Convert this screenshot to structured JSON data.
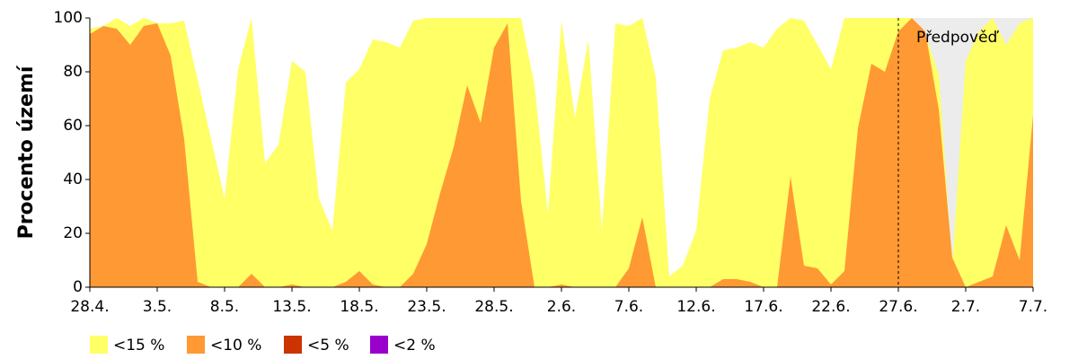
{
  "chart_data": {
    "type": "area",
    "ylabel": "Procento území",
    "annotation": "Předpověď",
    "forecast_from": "27.6.",
    "categories": [
      "28.4.",
      null,
      null,
      null,
      null,
      "3.5.",
      null,
      null,
      null,
      null,
      "8.5.",
      null,
      null,
      null,
      null,
      "13.5.",
      null,
      null,
      null,
      null,
      "18.5.",
      null,
      null,
      null,
      null,
      "23.5.",
      null,
      null,
      null,
      null,
      "28.5.",
      null,
      null,
      null,
      null,
      "2.6.",
      null,
      null,
      null,
      null,
      "7.6.",
      null,
      null,
      null,
      null,
      "12.6.",
      null,
      null,
      null,
      null,
      "17.6.",
      null,
      null,
      null,
      null,
      "22.6.",
      null,
      null,
      null,
      null,
      "27.6.",
      null,
      null,
      null,
      null,
      "2.7.",
      null,
      null,
      null,
      null,
      "7.7."
    ],
    "series": [
      {
        "name": "<15 %",
        "color": "#ffff66",
        "values": [
          96,
          97,
          100,
          97,
          100,
          98,
          98,
          99,
          77,
          55,
          33,
          81,
          100,
          46,
          53,
          84,
          80,
          33,
          21,
          76,
          81,
          92,
          91,
          89,
          99,
          100,
          100,
          100,
          100,
          100,
          100,
          100,
          100,
          75,
          27,
          99,
          63,
          92,
          21,
          98,
          97,
          100,
          78,
          4,
          8,
          21,
          70,
          88,
          89,
          91,
          89,
          96,
          100,
          99,
          90,
          81,
          100,
          100,
          100,
          100,
          100,
          100,
          94,
          79,
          8,
          84,
          95,
          100,
          90,
          98,
          100
        ]
      },
      {
        "name": "<10 %",
        "color": "#ff9933",
        "values": [
          94,
          97,
          96,
          90,
          97,
          98,
          86,
          55,
          2,
          0,
          0,
          0,
          5,
          0,
          0,
          1,
          0,
          0,
          0,
          2,
          6,
          1,
          0,
          0,
          5,
          16,
          35,
          52,
          75,
          61,
          89,
          98,
          32,
          0,
          0,
          1,
          0,
          0,
          0,
          0,
          7,
          26,
          0,
          0,
          0,
          0,
          0,
          3,
          3,
          2,
          0,
          0,
          41,
          8,
          7,
          1,
          6,
          59,
          83,
          80,
          95,
          100,
          95,
          66,
          11,
          0,
          2,
          4,
          23,
          10,
          64
        ]
      },
      {
        "name": "<5 %",
        "color": "#cc3300",
        "values": [
          0,
          0,
          0,
          0,
          0,
          0,
          0,
          0,
          0,
          0,
          0,
          0,
          0,
          0,
          0,
          0,
          0,
          0,
          0,
          0,
          0,
          0,
          0,
          0,
          0,
          0,
          0,
          0,
          0,
          0,
          0,
          0,
          0,
          0,
          0,
          0,
          0,
          0,
          0,
          0,
          0,
          0,
          0,
          0,
          0,
          0,
          0,
          0,
          0,
          0,
          0,
          0,
          0,
          0,
          0,
          0,
          0,
          0,
          0,
          0,
          0,
          0,
          0,
          0,
          0,
          0,
          0,
          0,
          0,
          0,
          0
        ]
      },
      {
        "name": "<2 %",
        "color": "#9900cc",
        "values": [
          0,
          0,
          0,
          0,
          0,
          0,
          0,
          0,
          0,
          0,
          0,
          0,
          0,
          0,
          0,
          0,
          0,
          0,
          0,
          0,
          0,
          0,
          0,
          0,
          0,
          0,
          0,
          0,
          0,
          0,
          0,
          0,
          0,
          0,
          0,
          0,
          0,
          0,
          0,
          0,
          0,
          0,
          0,
          0,
          0,
          0,
          0,
          0,
          0,
          0,
          0,
          0,
          0,
          0,
          0,
          0,
          0,
          0,
          0,
          0,
          0,
          0,
          0,
          0,
          0,
          0,
          0,
          0,
          0,
          0,
          0
        ]
      }
    ],
    "ylim": [
      0,
      100
    ],
    "yticks": [
      0,
      20,
      40,
      60,
      80,
      100
    ],
    "forecast_color": "#ececec"
  }
}
